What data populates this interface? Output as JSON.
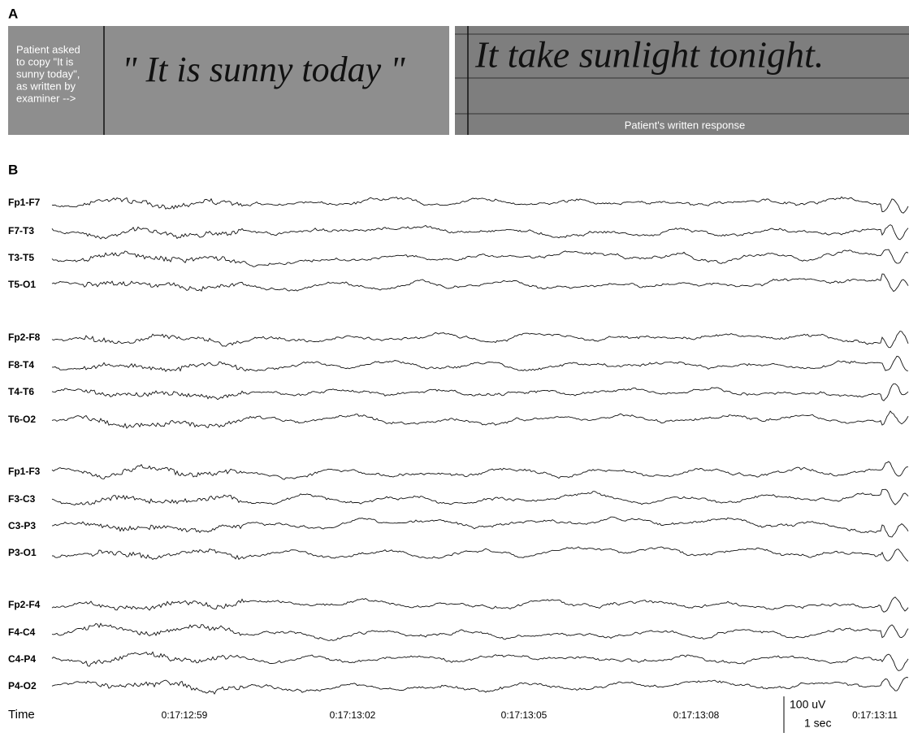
{
  "panel_a": {
    "label": "A",
    "instruction": [
      "Patient asked",
      "to copy \"It is",
      "sunny today\",",
      "as written by",
      "examiner -->"
    ],
    "examiner_writing": "\" It is sunny today \"",
    "patient_writing": "It take sunlight tonight.",
    "response_caption": "Patient's written response"
  },
  "panel_b": {
    "label": "B",
    "channels": [
      "Fp1-F7",
      "F7-T3",
      "T3-T5",
      "T5-O1",
      "Fp2-F8",
      "F8-T4",
      "T4-T6",
      "T6-O2",
      "Fp1-F3",
      "F3-C3",
      "C3-P3",
      "P3-O1",
      "Fp2-F4",
      "F4-C4",
      "C4-P4",
      "P4-O2"
    ],
    "time_label": "Time",
    "times": [
      "0:17:12:59",
      "0:17:13:02",
      "0:17:13:05",
      "0:17:13:08",
      "0:17:13:11"
    ],
    "scale_amplitude": "100 uV",
    "scale_time": "1 sec"
  }
}
